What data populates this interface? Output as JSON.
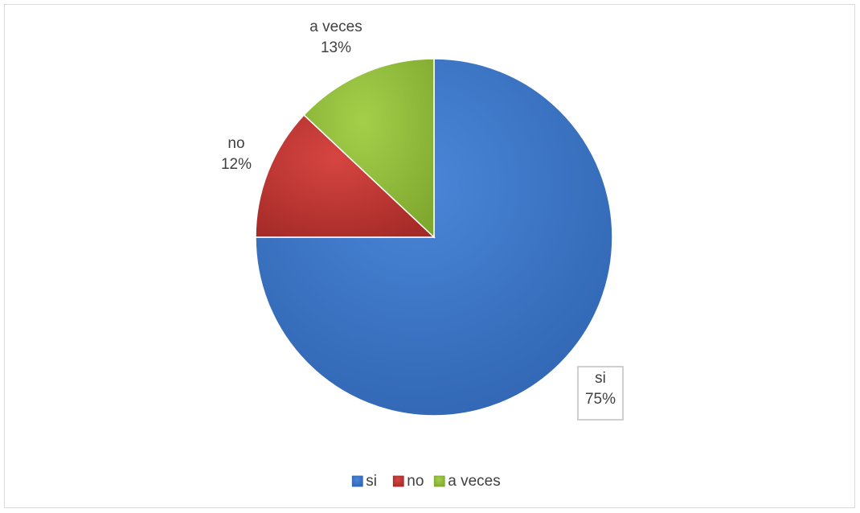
{
  "chart_data": {
    "type": "pie",
    "title": "",
    "categories": [
      "si",
      "no",
      "a veces"
    ],
    "values": [
      75,
      12,
      13
    ],
    "labels": [
      "75%",
      "12%",
      "13%"
    ],
    "colors": [
      "#4a86d8",
      "#d64541",
      "#a4cf4a"
    ],
    "dark_colors": [
      "#2f64b0",
      "#a52b28",
      "#7fa82f"
    ],
    "legend_placement": "bottom",
    "start_angle_deg": 0,
    "direction": "clockwise"
  }
}
